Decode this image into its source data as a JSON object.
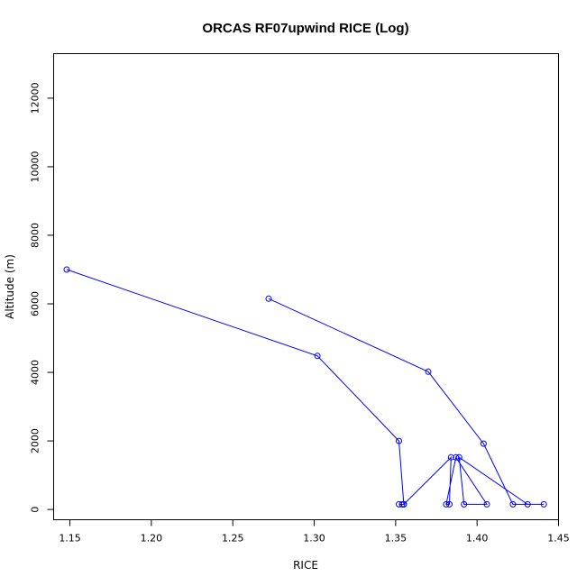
{
  "chart_data": {
    "type": "line",
    "title": "ORCAS RF07upwind RICE (Log)",
    "xlabel": "RICE",
    "ylabel": "Altitude (m)",
    "xlim": [
      1.14,
      1.45
    ],
    "ylim": [
      -300,
      13300
    ],
    "xticks": [
      1.15,
      1.2,
      1.25,
      1.3,
      1.35,
      1.4,
      1.45
    ],
    "xtick_labels": [
      "1.15",
      "1.20",
      "1.25",
      "1.30",
      "1.35",
      "1.40",
      "1.45"
    ],
    "yticks": [
      0,
      2000,
      4000,
      6000,
      8000,
      10000,
      12000
    ],
    "ytick_labels": [
      "0",
      "2000",
      "4000",
      "6000",
      "8000",
      "10000",
      "12000"
    ],
    "grid": false,
    "marker": "open-circle",
    "color": "#0000ff",
    "series": [
      {
        "points": [
          {
            "x": 1.148,
            "y": 7000
          },
          {
            "x": 1.302,
            "y": 4480
          },
          {
            "x": 1.352,
            "y": 2000
          },
          {
            "x": 1.355,
            "y": 150
          },
          {
            "x": 1.354,
            "y": 150
          },
          {
            "x": 1.352,
            "y": 150
          },
          {
            "x": 1.355,
            "y": 150
          },
          {
            "x": 1.384,
            "y": 1520
          },
          {
            "x": 1.383,
            "y": 150
          },
          {
            "x": 1.381,
            "y": 150
          },
          {
            "x": 1.387,
            "y": 1520
          },
          {
            "x": 1.406,
            "y": 150
          },
          {
            "x": 1.392,
            "y": 150
          },
          {
            "x": 1.389,
            "y": 1520
          },
          {
            "x": 1.431,
            "y": 150
          },
          {
            "x": 1.441,
            "y": 150
          },
          {
            "x": 1.422,
            "y": 150
          },
          {
            "x": 1.404,
            "y": 1920
          },
          {
            "x": 1.37,
            "y": 4020
          },
          {
            "x": 1.272,
            "y": 6150
          }
        ]
      }
    ]
  }
}
